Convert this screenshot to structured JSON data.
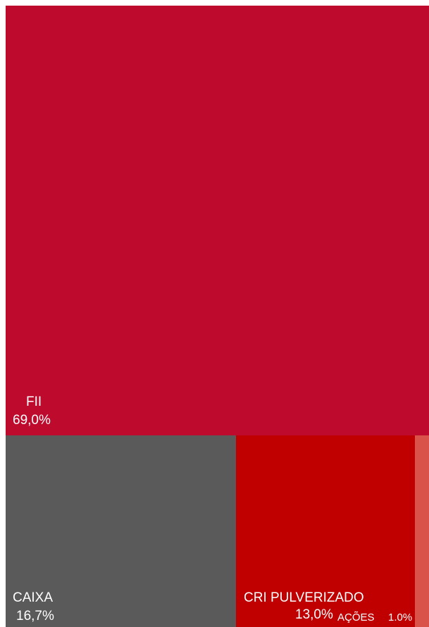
{
  "chart_data": {
    "type": "treemap",
    "items": [
      {
        "name": "FII",
        "value_label": "69,0%",
        "value": 69.0,
        "color": "#be0a2d"
      },
      {
        "name": "CAIXA",
        "value_label": "16,7%",
        "value": 16.7,
        "color": "#5a5a5a"
      },
      {
        "name": "CRI PULVERIZADO",
        "value_label": "13,0%",
        "value": 13.0,
        "color": "#c00000"
      },
      {
        "name": "AÇÕES",
        "value_label": "1.0%",
        "value": 1.0,
        "color": "#d9534a"
      }
    ]
  }
}
